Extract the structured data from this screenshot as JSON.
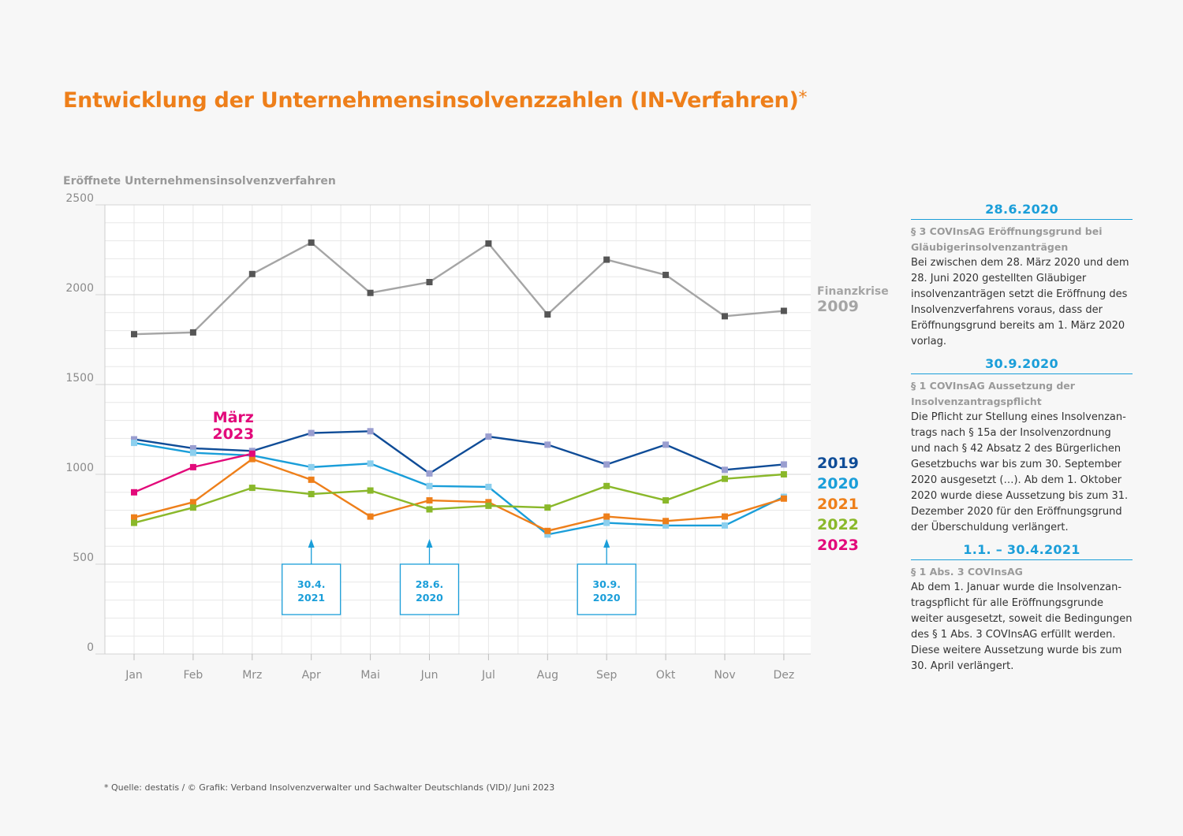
{
  "title": "Entwicklung der Unternehmensinsolvenzzahlen (IN-Verfahren)",
  "title_asterisk": "*",
  "chart_data": {
    "type": "line",
    "title": "Entwicklung der Unternehmensinsolvenzzahlen (IN-Verfahren)*",
    "ylabel": "Eröffnete Unternehmensinsolvenzverfahren",
    "xlabel": "",
    "ylim": [
      0,
      2500
    ],
    "yticks": [
      0,
      500,
      1000,
      1500,
      2000,
      2500
    ],
    "categories": [
      "Jan",
      "Feb",
      "Mrz",
      "Apr",
      "Mai",
      "Jun",
      "Jul",
      "Aug",
      "Sep",
      "Okt",
      "Nov",
      "Dez"
    ],
    "grid": true,
    "series": [
      {
        "name": "2009",
        "label_top": "Finanzkrise",
        "color": "#a5a5a5",
        "marker_color": "#555555",
        "values": [
          1780,
          1790,
          2115,
          2290,
          2010,
          2070,
          2285,
          1890,
          2195,
          2110,
          1880,
          1910
        ]
      },
      {
        "name": "2019",
        "color": "#0f4c97",
        "marker_color": "#9a9ed0",
        "values": [
          1195,
          1145,
          1130,
          1230,
          1240,
          1005,
          1210,
          1165,
          1055,
          1165,
          1025,
          1055
        ]
      },
      {
        "name": "2020",
        "color": "#1a9ed9",
        "marker_color": "#8ccfee",
        "values": [
          1175,
          1120,
          1105,
          1040,
          1060,
          935,
          930,
          665,
          730,
          715,
          715,
          875
        ]
      },
      {
        "name": "2021",
        "color": "#ee7f1a",
        "marker_color": "#ee7f1a",
        "values": [
          760,
          845,
          1085,
          970,
          765,
          855,
          845,
          685,
          765,
          740,
          765,
          865
        ]
      },
      {
        "name": "2022",
        "color": "#8ab82a",
        "marker_color": "#8ab82a",
        "values": [
          730,
          815,
          925,
          890,
          910,
          805,
          825,
          815,
          935,
          855,
          975,
          1000
        ]
      },
      {
        "name": "2023",
        "color": "#e2097a",
        "marker_color": "#e2097a",
        "values": [
          900,
          1040,
          1115,
          null,
          null,
          null,
          null,
          null,
          null,
          null,
          null,
          null
        ]
      }
    ],
    "annotations": [
      {
        "text": "März\n2023",
        "color": "#e2097a",
        "category": "Mrz"
      },
      {
        "text": "30.4.\n2021",
        "category": "Apr",
        "color": "#1a9ed9"
      },
      {
        "text": "28.6.\n2020",
        "category": "Jun",
        "color": "#1a9ed9"
      },
      {
        "text": "30.9.\n2020",
        "category": "Sep",
        "color": "#1a9ed9"
      }
    ]
  },
  "sidebar": [
    {
      "date": "28.6.2020",
      "heading": "§ 3 COVInsAG Eröffnungsgrund bei Gläubigerinsolvenzanträgen",
      "text": "Bei zwischen dem 28. März 2020 und dem 28. Juni 2020 gestellten Gläubiger insolvenz­anträgen setzt die Eröffnung des Insolvenz­verfahrens voraus, dass der Eröffnungsgrund bereits am 1. März 2020 vorlag."
    },
    {
      "date": "30.9.2020",
      "heading": "§ 1 COVInsAG Aussetzung der Insolvenz­antragspflicht",
      "text": "Die Pflicht zur Stellung eines Insolvenzan­trags nach § 15a der Insolvenzordnung und nach § 42 Absatz 2 des Bürgerlichen Gesetzbuchs war bis zum 30. September 2020 ausgesetzt (…). Ab dem 1. Oktober 2020 wurde diese Aussetzung bis zum 31. Dezember 2020 für den Eröffnungs­grund der Überschuldung verlängert."
    },
    {
      "date": "1.1. – 30.4.2021",
      "heading": "§ 1 Abs. 3 COVInsAG",
      "text": "Ab dem 1. Januar wurde die Insolvenzan­tragspflicht für alle Eröffnungsgrunde weiter ausgesetzt, soweit die Bedingungen des § 1 Abs. 3 COVInsAG erfüllt werden. Diese weitere Aussetzung wurde bis zum 30. April verlängert."
    }
  ],
  "footnote": "* Quelle: destatis / © Grafik: Verband Insolvenzverwalter und Sachwalter Deutschlands (VID)/ Juni 2023",
  "colors": {
    "title": "#ee7f1a",
    "accent_blue": "#1a9ed9",
    "background": "#f7f7f7"
  }
}
